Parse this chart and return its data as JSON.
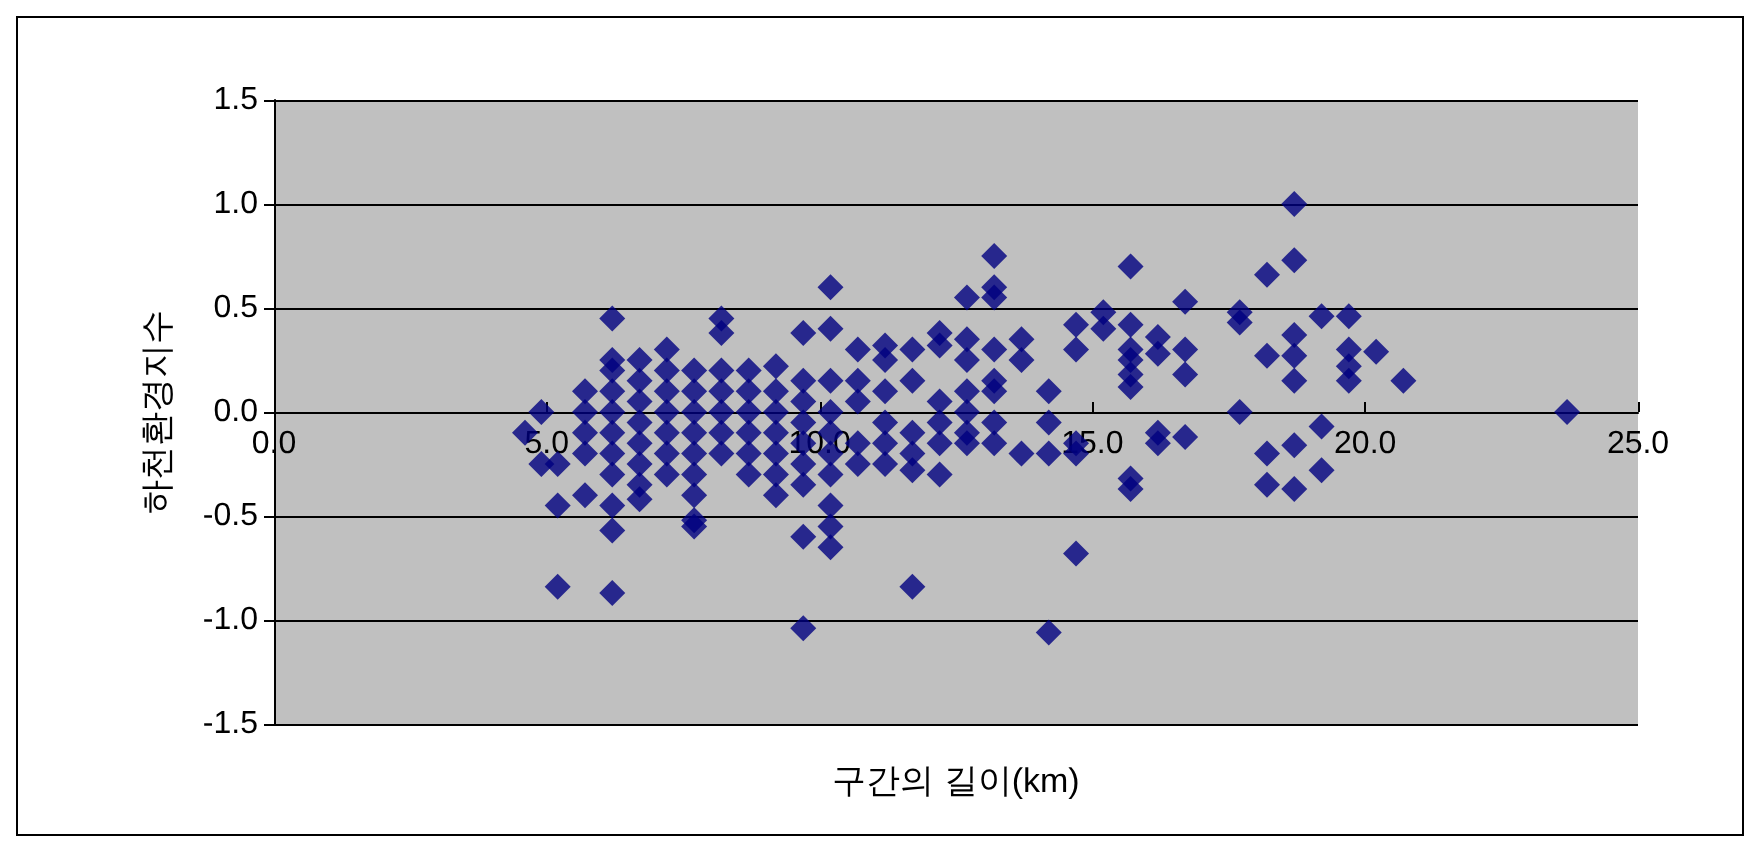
{
  "chart_data": {
    "type": "scatter",
    "xlabel": "구간의 길이(km)",
    "ylabel": "하천환경지수",
    "marker": "diamond",
    "grid": "y",
    "xlim": [
      0,
      25
    ],
    "xticks": [
      {
        "value": 0,
        "label": "0.0"
      },
      {
        "value": 5,
        "label": "5.0"
      },
      {
        "value": 10,
        "label": "10.0"
      },
      {
        "value": 15,
        "label": "15.0"
      },
      {
        "value": 20,
        "label": "20.0"
      },
      {
        "value": 25,
        "label": "25.0"
      }
    ],
    "ylim": [
      -1.5,
      1.5
    ],
    "yticks": [
      {
        "value": -1.5,
        "label": "-1.5"
      },
      {
        "value": -1,
        "label": "-1.0"
      },
      {
        "value": -0.5,
        "label": "-0.5"
      },
      {
        "value": 0,
        "label": "0.0"
      },
      {
        "value": 0.5,
        "label": "0.5"
      },
      {
        "value": 1,
        "label": "1.0"
      },
      {
        "value": 1.5,
        "label": "1.5"
      }
    ],
    "series": [
      {
        "color": "#000080",
        "x": [
          4.6,
          4.9,
          4.9,
          5.2,
          5.2,
          5.2,
          5.7,
          5.7,
          5.7,
          5.7,
          5.7,
          6.2,
          6.2,
          6.2,
          6.2,
          6.2,
          6.2,
          6.2,
          6.2,
          6.2,
          6.2,
          6.2,
          6.7,
          6.7,
          6.7,
          6.7,
          6.7,
          6.7,
          6.7,
          6.7,
          7.2,
          7.2,
          7.2,
          7.2,
          7.2,
          7.2,
          7.2,
          7.7,
          7.7,
          7.7,
          7.7,
          7.7,
          7.7,
          7.7,
          7.7,
          7.7,
          8.2,
          8.2,
          8.2,
          8.2,
          8.2,
          8.2,
          8.2,
          8.7,
          8.7,
          8.7,
          8.7,
          8.7,
          8.7,
          9.2,
          9.2,
          9.2,
          9.2,
          9.2,
          9.2,
          9.2,
          9.7,
          9.7,
          9.7,
          9.7,
          9.7,
          9.7,
          9.7,
          9.7,
          9.7,
          10.2,
          10.2,
          10.2,
          10.2,
          10.2,
          10.2,
          10.2,
          10.2,
          10.2,
          10.2,
          10.7,
          10.7,
          10.7,
          10.7,
          10.7,
          11.2,
          11.2,
          11.2,
          11.2,
          11.2,
          11.2,
          11.7,
          11.7,
          11.7,
          11.7,
          11.7,
          11.7,
          12.2,
          12.2,
          12.2,
          12.2,
          12.2,
          12.2,
          12.7,
          12.7,
          12.7,
          12.7,
          12.7,
          12.7,
          12.7,
          13.2,
          13.2,
          13.2,
          13.2,
          13.2,
          13.2,
          13.2,
          13.2,
          13.7,
          13.7,
          13.7,
          14.2,
          14.2,
          14.2,
          14.2,
          14.7,
          14.7,
          14.7,
          14.7,
          14.7,
          15.2,
          15.2,
          15.7,
          15.7,
          15.7,
          15.7,
          15.7,
          15.7,
          15.7,
          15.7,
          16.2,
          16.2,
          16.2,
          16.2,
          16.7,
          16.7,
          16.7,
          16.7,
          17.7,
          17.7,
          17.7,
          18.2,
          18.2,
          18.2,
          18.2,
          18.7,
          18.7,
          18.7,
          18.7,
          18.7,
          18.7,
          18.7,
          19.2,
          19.2,
          19.2,
          19.7,
          19.7,
          19.7,
          19.7,
          20.2,
          20.7,
          23.7
        ],
        "values": [
          -0.1,
          0.0,
          -0.25,
          -0.45,
          -0.84,
          -0.25,
          0.1,
          0.0,
          -0.1,
          -0.2,
          -0.4,
          0.45,
          0.25,
          0.2,
          0.1,
          0.0,
          -0.1,
          -0.2,
          -0.3,
          -0.45,
          -0.57,
          -0.87,
          0.25,
          0.15,
          0.05,
          -0.05,
          -0.15,
          -0.25,
          -0.35,
          -0.42,
          0.3,
          0.2,
          0.1,
          0.0,
          -0.1,
          -0.2,
          -0.3,
          0.2,
          0.1,
          0.0,
          -0.1,
          -0.2,
          -0.3,
          -0.4,
          -0.52,
          -0.55,
          0.45,
          0.38,
          0.2,
          0.1,
          0.0,
          -0.1,
          -0.2,
          0.2,
          0.1,
          0.0,
          -0.1,
          -0.2,
          -0.3,
          0.22,
          0.1,
          0.0,
          -0.1,
          -0.2,
          -0.3,
          -0.4,
          0.38,
          0.15,
          0.05,
          -0.05,
          -0.15,
          -0.25,
          -0.35,
          -0.6,
          -1.04,
          0.6,
          0.4,
          0.15,
          0.0,
          -0.1,
          -0.2,
          -0.3,
          -0.45,
          -0.55,
          -0.65,
          0.3,
          0.15,
          0.05,
          -0.15,
          -0.25,
          0.32,
          0.25,
          0.1,
          -0.05,
          -0.15,
          -0.25,
          0.3,
          0.15,
          -0.1,
          -0.2,
          -0.28,
          -0.84,
          0.38,
          0.32,
          0.05,
          -0.05,
          -0.15,
          -0.3,
          0.55,
          0.35,
          0.25,
          0.1,
          0.0,
          -0.1,
          -0.15,
          0.75,
          0.6,
          0.55,
          0.3,
          0.15,
          0.1,
          -0.05,
          -0.15,
          0.35,
          0.25,
          -0.2,
          0.1,
          -0.05,
          -0.2,
          -1.06,
          0.42,
          0.3,
          -0.15,
          -0.2,
          -0.68,
          0.48,
          0.4,
          0.7,
          0.42,
          0.3,
          0.25,
          0.18,
          0.12,
          -0.32,
          -0.37,
          0.36,
          0.28,
          -0.1,
          -0.15,
          0.53,
          0.3,
          0.18,
          -0.12,
          0.48,
          0.43,
          0.0,
          0.66,
          0.27,
          -0.2,
          -0.35,
          1.0,
          0.73,
          0.37,
          0.27,
          0.15,
          -0.16,
          -0.37,
          0.46,
          -0.07,
          -0.28,
          0.46,
          0.3,
          0.22,
          0.15,
          0.29,
          0.15,
          0.0
        ]
      }
    ]
  }
}
